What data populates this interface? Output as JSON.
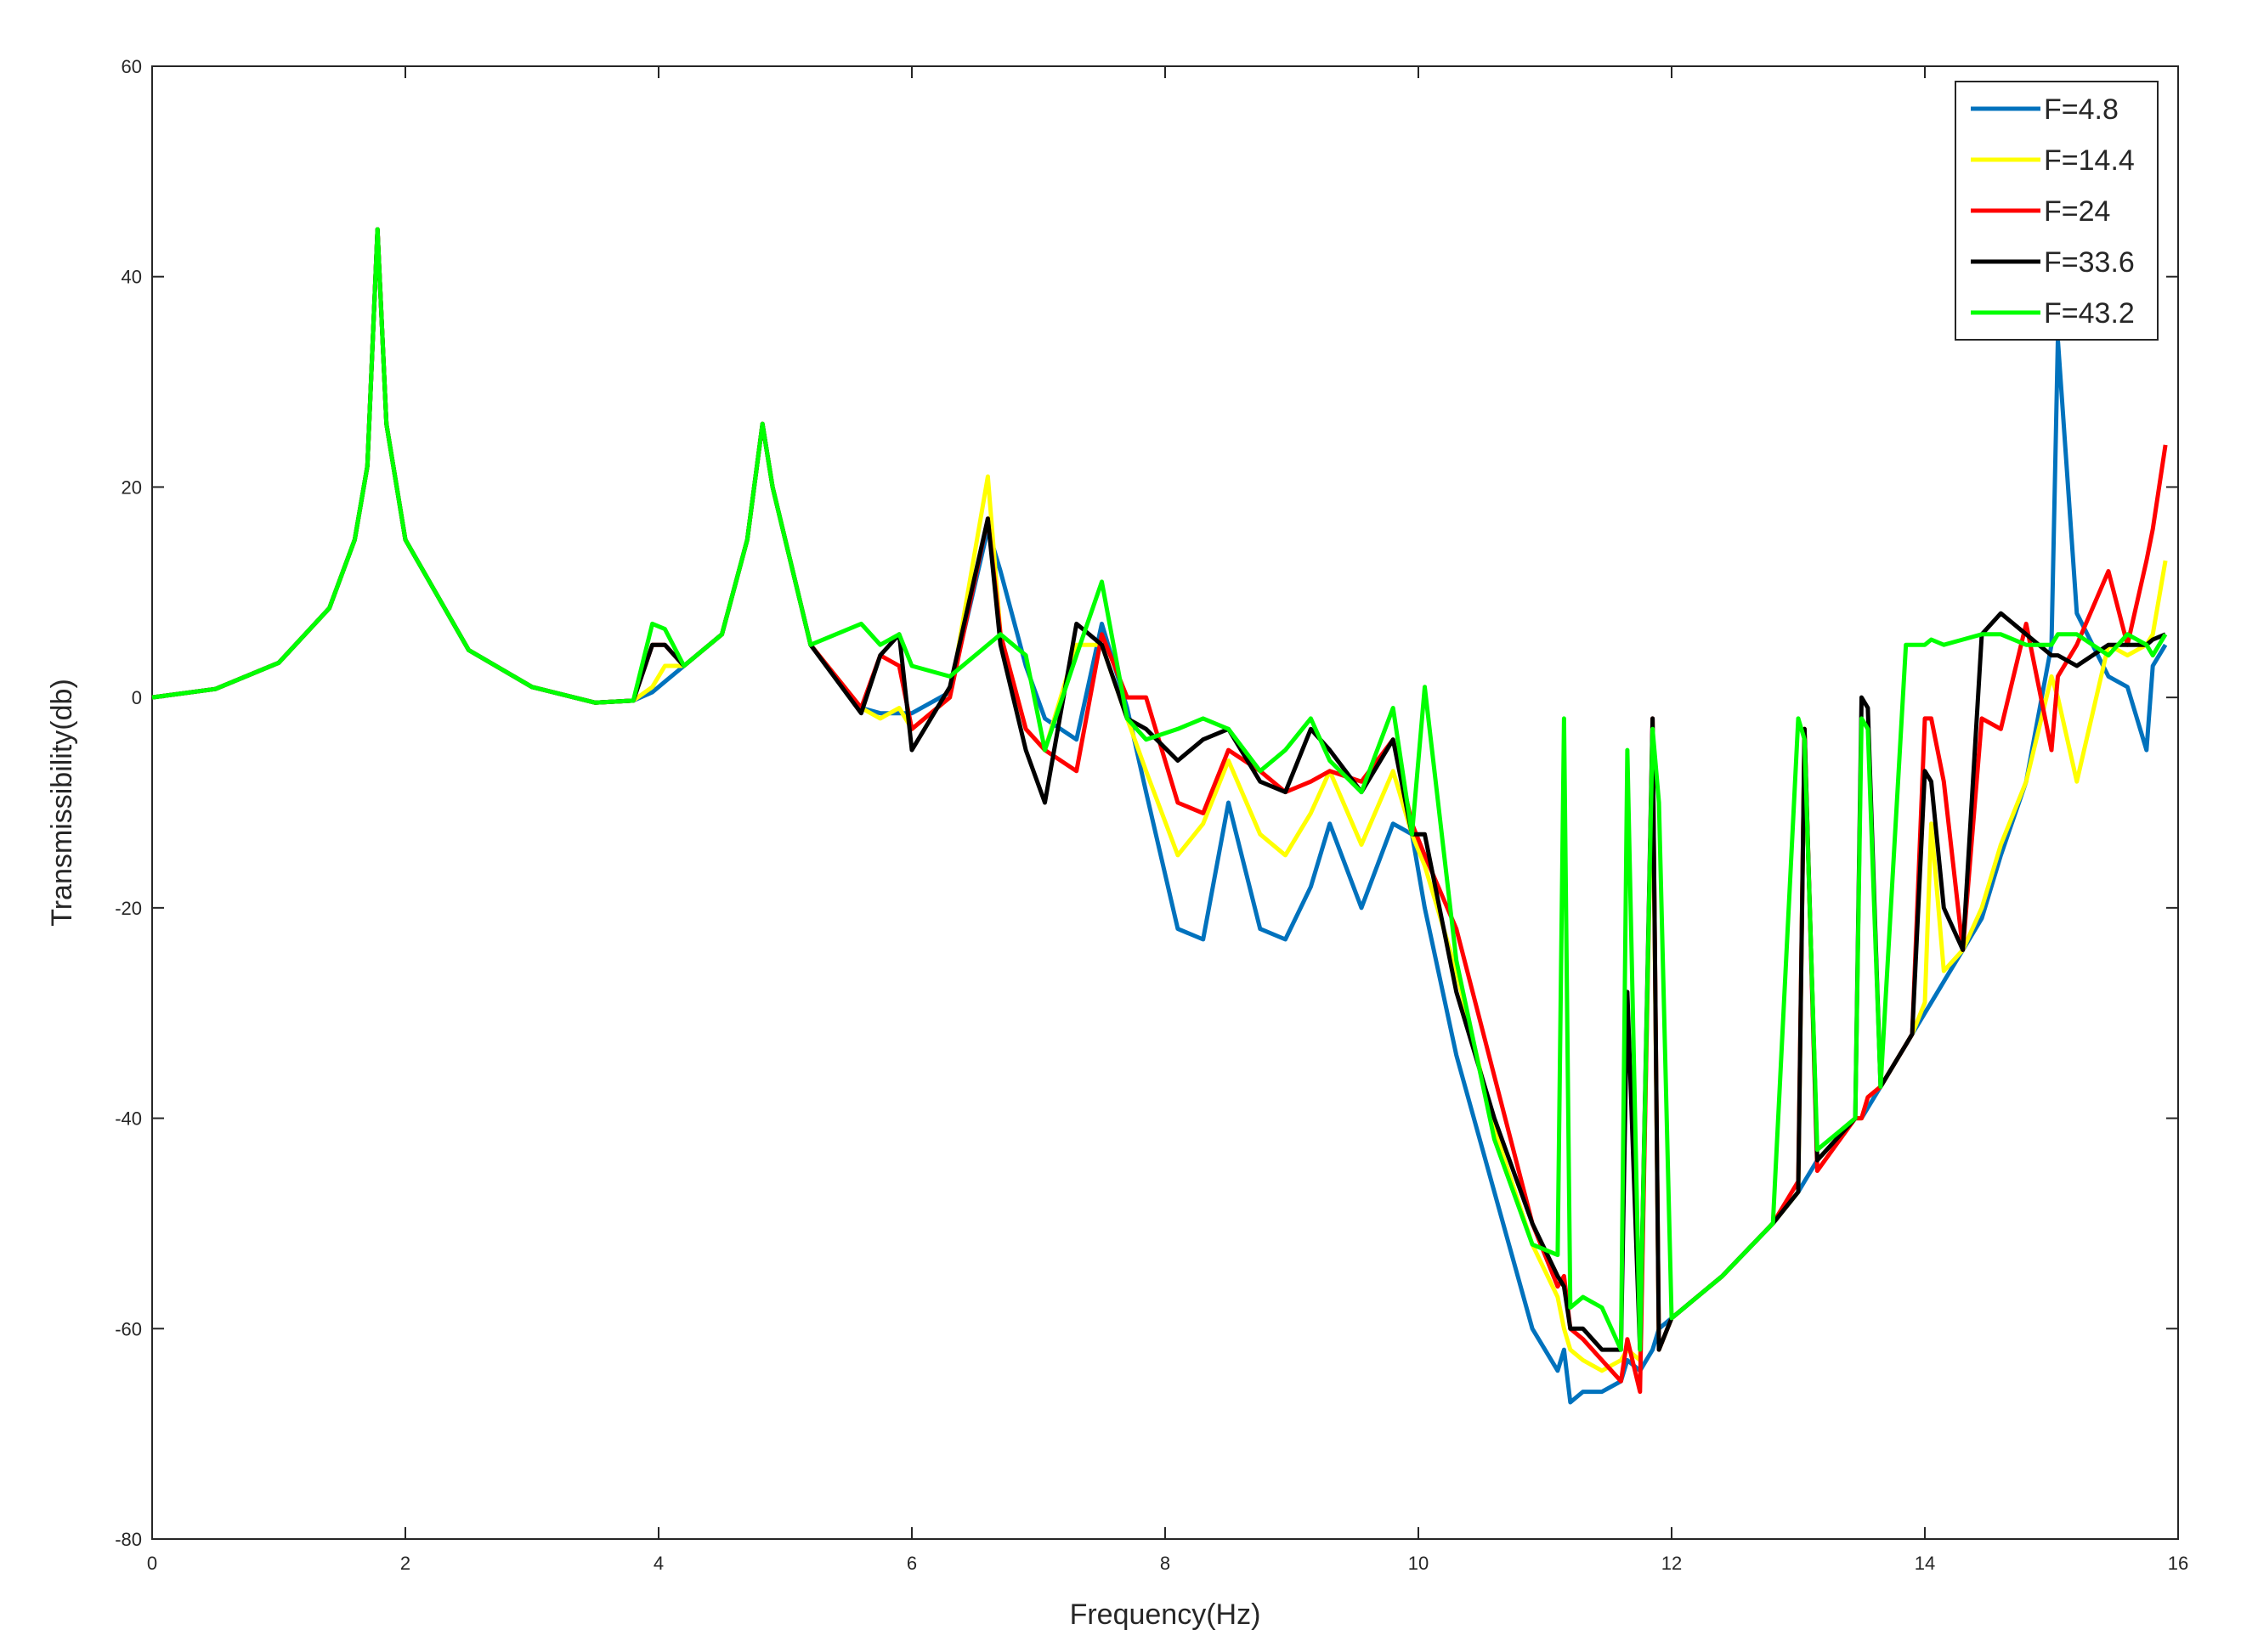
{
  "chart_data": {
    "type": "line",
    "xlabel": "Frequency(Hz)",
    "ylabel": "Transmissibility(db)",
    "x": [
      0,
      0.5,
      1,
      1.4,
      1.6,
      1.7,
      1.78,
      1.85,
      2,
      2.5,
      3,
      3.5,
      3.8,
      3.95,
      4.05,
      4.2,
      4.5,
      4.7,
      4.82,
      4.9,
      5.2,
      5.6,
      5.75,
      5.9,
      6,
      6.3,
      6.6,
      6.7,
      6.9,
      7.05,
      7.3,
      7.5,
      7.7,
      7.85,
      8.1,
      8.3,
      8.5,
      8.75,
      8.95,
      9.15,
      9.3,
      9.55,
      9.8,
      9.95,
      10.05,
      10.3,
      10.6,
      10.9,
      11.1,
      11.15,
      11.2,
      11.3,
      11.45,
      11.6,
      11.65,
      11.75,
      11.85,
      11.9,
      12,
      12.4,
      12.8,
      13,
      13.05,
      13.15,
      13.45,
      13.5,
      13.55,
      13.65,
      13.85,
      13.9,
      14,
      14.05,
      14.15,
      14.3,
      14.45,
      14.6,
      14.8,
      15,
      15.05,
      15.2,
      15.45,
      15.6,
      15.75,
      15.8,
      15.9
    ],
    "series": [
      {
        "name": "F=4.8",
        "color": "#0072bd",
        "values": [
          0,
          0.8,
          3.3,
          8.5,
          15,
          22,
          44.5,
          26,
          15,
          4.5,
          1,
          -0.5,
          -0.3,
          0.5,
          1.5,
          3,
          6,
          15,
          26,
          20,
          5,
          -1,
          -1.5,
          -1.5,
          -1.5,
          0.5,
          16,
          12,
          3,
          -2,
          -4,
          7,
          -1,
          -9,
          -22,
          -23,
          -10,
          -22,
          -23,
          -18,
          -12,
          -20,
          -12,
          -13,
          -20,
          -34,
          -47,
          -60,
          -64,
          -62,
          -67,
          -66,
          -66,
          -65,
          -63,
          -64,
          -62,
          -60,
          -59,
          -55,
          -50,
          -47,
          -46,
          -44,
          -40,
          -40,
          -39,
          -37,
          -33,
          -32,
          -30,
          -29,
          -27,
          -24,
          -21,
          -15,
          -8,
          5,
          34,
          8,
          2,
          1,
          -5,
          3,
          5
        ]
      },
      {
        "name": "F=14.4",
        "color": "#ffff00",
        "values": [
          0,
          0.8,
          3.3,
          8.5,
          15,
          22,
          44.5,
          26,
          15,
          4.5,
          1,
          -0.5,
          -0.3,
          1,
          3,
          3,
          6,
          15,
          26,
          20,
          5,
          -1,
          -2,
          -1,
          -3,
          0,
          21,
          6,
          -3,
          -5,
          5,
          5,
          -2,
          -7,
          -15,
          -12,
          -6,
          -13,
          -15,
          -11,
          -7,
          -14,
          -7,
          -13,
          -16,
          -26,
          -41,
          -52,
          -57,
          -60,
          -62,
          -63,
          -64,
          -63,
          -62,
          -63,
          -4,
          -62,
          -59,
          -55,
          -50,
          -47,
          -3,
          -44,
          -40,
          -40,
          -38,
          -37,
          -33,
          -32,
          -29,
          -12,
          -26,
          -24,
          -20,
          -14,
          -8,
          2,
          0,
          -8,
          5,
          4,
          5,
          6,
          13
        ]
      },
      {
        "name": "F=24",
        "color": "#ff0000",
        "values": [
          0,
          0.8,
          3.3,
          8.5,
          15,
          22,
          44.5,
          26,
          15,
          4.5,
          1,
          -0.5,
          -0.3,
          5,
          5,
          3,
          6,
          15,
          26,
          20,
          5,
          -1,
          4,
          3,
          -3,
          0,
          17,
          6,
          -3,
          -5,
          -7,
          6,
          0,
          0,
          -10,
          -11,
          -5,
          -7,
          -9,
          -8,
          -7,
          -8,
          -4,
          -12,
          -15,
          -22,
          -36,
          -50,
          -56,
          -55,
          -60,
          -61,
          -63,
          -65,
          -61,
          -66,
          -2,
          -62,
          -59,
          -55,
          -50,
          -46,
          -3,
          -45,
          -40,
          -40,
          -38,
          -37,
          -33,
          -32,
          -2,
          -2,
          -8,
          -24,
          -2,
          -3,
          7,
          -5,
          2,
          5,
          12,
          5,
          13,
          16,
          24
        ]
      },
      {
        "name": "F=33.6",
        "color": "#000000",
        "values": [
          0,
          0.8,
          3.3,
          8.5,
          15,
          22,
          44.5,
          26,
          15,
          4.5,
          1,
          -0.5,
          -0.3,
          5,
          5,
          3,
          6,
          15,
          26,
          20,
          5,
          -1.5,
          4,
          6,
          -5,
          1,
          17,
          5,
          -5,
          -10,
          7,
          5,
          -2,
          -3,
          -6,
          -4,
          -3,
          -8,
          -9,
          -3,
          -5,
          -9,
          -4,
          -13,
          -13,
          -28,
          -40,
          -50,
          -55,
          -56,
          -60,
          -60,
          -62,
          -62,
          -28,
          -62,
          -2,
          -62,
          -59,
          -55,
          -50,
          -47,
          -3,
          -44,
          -40,
          0,
          -1,
          -37,
          -33,
          -32,
          -7,
          -8,
          -20,
          -24,
          6,
          8,
          6,
          4,
          4,
          3,
          5,
          5,
          5,
          5.5,
          6
        ]
      },
      {
        "name": "F=43.2",
        "color": "#00ff00",
        "values": [
          0,
          0.8,
          3.3,
          8.5,
          15,
          22,
          44.5,
          26,
          15,
          4.5,
          1,
          -0.5,
          -0.3,
          7,
          6.5,
          3,
          6,
          15,
          26,
          20,
          5,
          7,
          5,
          6,
          3,
          2,
          5,
          6,
          4,
          -5,
          4,
          11,
          -2,
          -4,
          -3,
          -2,
          -3,
          -7,
          -5,
          -2,
          -6,
          -9,
          -1,
          -13,
          1,
          -25,
          -42,
          -52,
          -53,
          -2,
          -58,
          -57,
          -58,
          -62,
          -5,
          -62,
          -3,
          -10,
          -59,
          -55,
          -50,
          -2,
          -4,
          -43,
          -40,
          -2,
          -3,
          -37,
          5,
          5,
          5,
          5.5,
          5,
          5.5,
          6,
          6,
          5,
          5,
          6,
          6,
          4,
          6,
          5,
          4,
          6
        ]
      }
    ],
    "xlim": [
      0,
      16
    ],
    "xticks": [
      0,
      2,
      4,
      6,
      8,
      10,
      12,
      14,
      16
    ],
    "ylim": [
      -80,
      60
    ],
    "yticks": [
      -80,
      -60,
      -40,
      -20,
      0,
      20,
      40,
      60
    ],
    "grid": false,
    "legend": "upper right"
  }
}
